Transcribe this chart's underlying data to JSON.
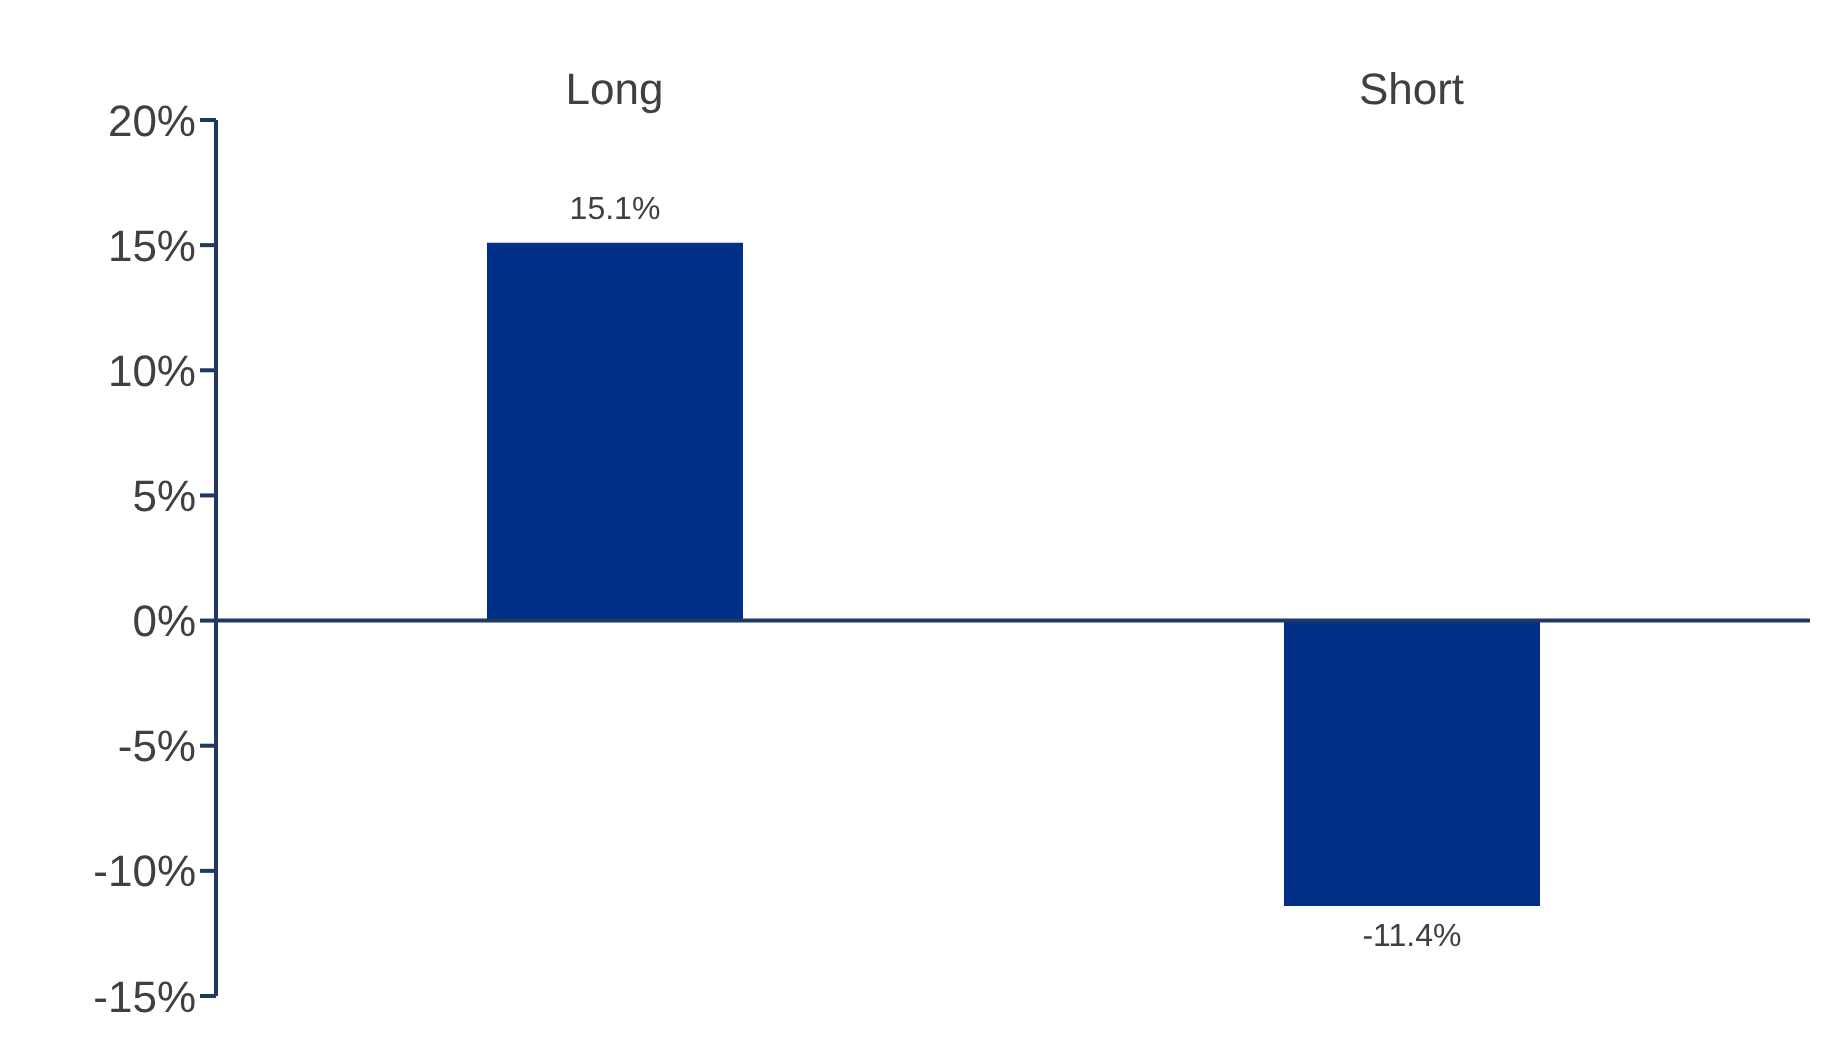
{
  "chart_data": {
    "type": "bar",
    "categories": [
      "Long",
      "Short"
    ],
    "values": [
      15.1,
      -11.4
    ],
    "color": "#003087",
    "ylim": [
      -15,
      20
    ],
    "yticks": [
      {
        "value": -15,
        "label": "-15%"
      },
      {
        "value": -10,
        "label": "-10%"
      },
      {
        "value": -5,
        "label": "-5%"
      },
      {
        "value": 0,
        "label": "0%"
      },
      {
        "value": 5,
        "label": "5%"
      },
      {
        "value": 10,
        "label": "10%"
      },
      {
        "value": 15,
        "label": "15%"
      },
      {
        "value": 20,
        "label": "20%"
      }
    ],
    "value_labels": [
      "15.1%",
      "-11.4%"
    ],
    "ref_lines": [
      {
        "axis": "y",
        "value": 0,
        "color": "#1f3864"
      }
    ],
    "grid": false,
    "legend": false
  }
}
